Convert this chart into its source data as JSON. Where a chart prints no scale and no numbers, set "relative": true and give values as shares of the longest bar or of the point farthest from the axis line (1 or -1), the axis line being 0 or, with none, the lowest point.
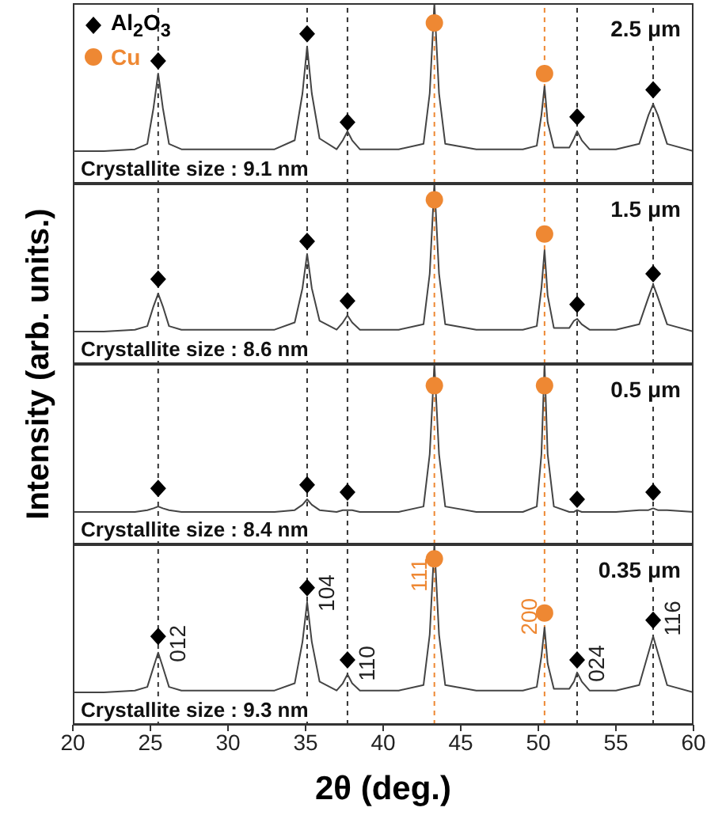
{
  "chart_data": [
    {
      "type": "line",
      "relative": true,
      "ylabel": "Intensity (arb. units.)",
      "xlim": [
        20,
        60
      ],
      "xticks": [
        20,
        25,
        30,
        35,
        40,
        45,
        50,
        55,
        60
      ],
      "tick_labels": false,
      "legend": "top left",
      "annotations": [
        "2.5 μm",
        "Crystallite size : 9.1 nm"
      ],
      "ref_lines": [
        {
          "axis": "x",
          "value": 25.5,
          "color": "#333333",
          "line_style": "dashed"
        },
        {
          "axis": "x",
          "value": 35.1,
          "color": "#333333",
          "line_style": "dashed"
        },
        {
          "axis": "x",
          "value": 37.7,
          "color": "#333333",
          "line_style": "dashed"
        },
        {
          "axis": "x",
          "value": 43.3,
          "color": "#ee8833",
          "line_style": "dashed"
        },
        {
          "axis": "x",
          "value": 50.4,
          "color": "#ee8833",
          "line_style": "dashed"
        },
        {
          "axis": "x",
          "value": 52.5,
          "color": "#333333",
          "line_style": "dashed"
        },
        {
          "axis": "x",
          "value": 57.4,
          "color": "#333333",
          "line_style": "dashed"
        }
      ],
      "series": [
        {
          "type": "line",
          "color": "#444444",
          "x": [
            20,
            22,
            24,
            24.8,
            25.2,
            25.5,
            25.8,
            26.2,
            27,
            30,
            33,
            34.3,
            34.8,
            35.1,
            35.4,
            35.9,
            37,
            37.4,
            37.7,
            38,
            38.5,
            41,
            42.6,
            43.0,
            43.3,
            43.6,
            44,
            46,
            49,
            49.9,
            50.2,
            50.4,
            50.6,
            51,
            52,
            52.3,
            52.5,
            52.8,
            53.3,
            55,
            56.5,
            57.1,
            57.4,
            57.7,
            58.3,
            60
          ],
          "values": [
            0.18,
            0.18,
            0.19,
            0.22,
            0.42,
            0.61,
            0.42,
            0.22,
            0.19,
            0.19,
            0.19,
            0.24,
            0.5,
            0.76,
            0.5,
            0.25,
            0.19,
            0.24,
            0.29,
            0.24,
            0.19,
            0.19,
            0.22,
            0.5,
            1,
            0.5,
            0.22,
            0.19,
            0.19,
            0.21,
            0.38,
            0.54,
            0.34,
            0.2,
            0.2,
            0.25,
            0.29,
            0.24,
            0.19,
            0.19,
            0.22,
            0.38,
            0.44,
            0.38,
            0.22,
            0.18
          ]
        },
        {
          "type": "scatter",
          "name": "Al$_{2}$O$_{3}$",
          "marker": "diamond",
          "color": "#000000",
          "x": [
            25.5,
            35.1,
            37.7,
            52.5,
            57.4
          ],
          "values": [
            0.68,
            0.83,
            0.34,
            0.37,
            0.52
          ]
        },
        {
          "type": "scatter",
          "name": "Cu",
          "marker": "circle",
          "color": "#ee8833",
          "x": [
            43.3,
            50.4
          ],
          "values": [
            0.89,
            0.61
          ]
        }
      ]
    },
    {
      "type": "line",
      "relative": true,
      "xlim": [
        20,
        60
      ],
      "xticks": [
        20,
        25,
        30,
        35,
        40,
        45,
        50,
        55,
        60
      ],
      "tick_labels": false,
      "annotations": [
        "1.5 μm",
        "Crystallite size : 8.6 nm"
      ],
      "ref_lines": [
        {
          "axis": "x",
          "value": 25.5,
          "color": "#333333",
          "line_style": "dashed"
        },
        {
          "axis": "x",
          "value": 35.1,
          "color": "#333333",
          "line_style": "dashed"
        },
        {
          "axis": "x",
          "value": 37.7,
          "color": "#333333",
          "line_style": "dashed"
        },
        {
          "axis": "x",
          "value": 43.3,
          "color": "#ee8833",
          "line_style": "dashed"
        },
        {
          "axis": "x",
          "value": 50.4,
          "color": "#ee8833",
          "line_style": "dashed"
        },
        {
          "axis": "x",
          "value": 52.5,
          "color": "#333333",
          "line_style": "dashed"
        },
        {
          "axis": "x",
          "value": 57.4,
          "color": "#333333",
          "line_style": "dashed"
        }
      ],
      "series": [
        {
          "type": "line",
          "color": "#444444",
          "x": [
            20,
            22,
            24,
            24.8,
            25.2,
            25.5,
            25.8,
            26.2,
            27,
            30,
            33,
            34.3,
            34.8,
            35.1,
            35.4,
            35.9,
            37,
            37.4,
            37.7,
            38,
            38.5,
            41,
            42.6,
            43.0,
            43.3,
            43.6,
            44,
            46,
            49,
            49.9,
            50.2,
            50.4,
            50.6,
            51,
            52,
            52.3,
            52.5,
            52.8,
            53.3,
            55,
            56.5,
            57.1,
            57.4,
            57.7,
            58.3,
            60
          ],
          "values": [
            0.18,
            0.18,
            0.19,
            0.21,
            0.32,
            0.39,
            0.32,
            0.21,
            0.19,
            0.19,
            0.19,
            0.23,
            0.42,
            0.61,
            0.42,
            0.24,
            0.19,
            0.23,
            0.27,
            0.23,
            0.19,
            0.19,
            0.22,
            0.5,
            1,
            0.5,
            0.22,
            0.19,
            0.19,
            0.21,
            0.42,
            0.63,
            0.38,
            0.2,
            0.2,
            0.24,
            0.25,
            0.22,
            0.19,
            0.19,
            0.22,
            0.37,
            0.44,
            0.37,
            0.22,
            0.18
          ]
        },
        {
          "type": "scatter",
          "marker": "diamond",
          "color": "#000000",
          "x": [
            25.5,
            35.1,
            37.7,
            52.5,
            57.4
          ],
          "values": [
            0.47,
            0.68,
            0.35,
            0.33,
            0.5
          ]
        },
        {
          "type": "scatter",
          "marker": "circle",
          "color": "#ee8833",
          "x": [
            43.3,
            50.4
          ],
          "values": [
            0.91,
            0.72
          ]
        }
      ]
    },
    {
      "type": "line",
      "relative": true,
      "xlim": [
        20,
        60
      ],
      "xticks": [
        20,
        25,
        30,
        35,
        40,
        45,
        50,
        55,
        60
      ],
      "tick_labels": false,
      "annotations": [
        "0.5 μm",
        "Crystallite size : 8.4 nm"
      ],
      "ref_lines": [
        {
          "axis": "x",
          "value": 25.5,
          "color": "#333333",
          "line_style": "dashed"
        },
        {
          "axis": "x",
          "value": 35.1,
          "color": "#333333",
          "line_style": "dashed"
        },
        {
          "axis": "x",
          "value": 37.7,
          "color": "#333333",
          "line_style": "dashed"
        },
        {
          "axis": "x",
          "value": 43.3,
          "color": "#ee8833",
          "line_style": "dashed"
        },
        {
          "axis": "x",
          "value": 50.4,
          "color": "#ee8833",
          "line_style": "dashed"
        },
        {
          "axis": "x",
          "value": 52.5,
          "color": "#333333",
          "line_style": "dashed"
        },
        {
          "axis": "x",
          "value": 57.4,
          "color": "#333333",
          "line_style": "dashed"
        }
      ],
      "series": [
        {
          "type": "line",
          "color": "#444444",
          "x": [
            20,
            22,
            24,
            24.8,
            25.2,
            25.5,
            25.8,
            26.2,
            27,
            30,
            33,
            34.3,
            34.8,
            35.1,
            35.4,
            35.9,
            37,
            37.4,
            37.7,
            38,
            38.5,
            41,
            42.6,
            43.0,
            43.3,
            43.6,
            44,
            46,
            49,
            49.9,
            50.2,
            50.4,
            50.6,
            51,
            52,
            52.3,
            52.5,
            52.8,
            53.3,
            55,
            56.5,
            57.1,
            57.4,
            57.7,
            58.3,
            60
          ],
          "values": [
            0.18,
            0.18,
            0.18,
            0.19,
            0.2,
            0.21,
            0.2,
            0.19,
            0.18,
            0.18,
            0.18,
            0.19,
            0.22,
            0.25,
            0.22,
            0.19,
            0.18,
            0.19,
            0.19,
            0.19,
            0.18,
            0.18,
            0.21,
            0.5,
            1,
            0.5,
            0.21,
            0.18,
            0.18,
            0.21,
            0.5,
            1,
            0.5,
            0.21,
            0.18,
            0.18,
            0.19,
            0.18,
            0.18,
            0.18,
            0.19,
            0.19,
            0.2,
            0.19,
            0.19,
            0.18
          ]
        },
        {
          "type": "scatter",
          "marker": "diamond",
          "color": "#000000",
          "x": [
            25.5,
            35.1,
            37.7,
            52.5,
            57.4
          ],
          "values": [
            0.31,
            0.33,
            0.29,
            0.25,
            0.29
          ]
        },
        {
          "type": "scatter",
          "marker": "circle",
          "color": "#ee8833",
          "x": [
            43.3,
            50.4
          ],
          "values": [
            0.88,
            0.88
          ]
        }
      ]
    },
    {
      "type": "line",
      "relative": true,
      "xlabel": "2θ (deg.)",
      "xlim": [
        20,
        60
      ],
      "xticks": [
        20,
        25,
        30,
        35,
        40,
        45,
        50,
        55,
        60
      ],
      "tick_labels": "x",
      "annotations": [
        "0.35 μm",
        "Crystallite size : 9.3 nm",
        {
          "text": "012",
          "x": 25.5,
          "y": 0.45
        },
        {
          "text": "104",
          "x": 35.1,
          "y": 0.73
        },
        {
          "text": "110",
          "x": 37.7,
          "y": 0.34
        },
        {
          "text": "111",
          "x": 43.3,
          "y": 0.83
        },
        {
          "text": "200",
          "x": 50.4,
          "y": 0.6
        },
        {
          "text": "024",
          "x": 52.5,
          "y": 0.34
        },
        {
          "text": "116",
          "x": 57.4,
          "y": 0.59
        }
      ],
      "ref_lines": [
        {
          "axis": "x",
          "value": 25.5,
          "color": "#333333",
          "line_style": "dashed"
        },
        {
          "axis": "x",
          "value": 35.1,
          "color": "#333333",
          "line_style": "dashed"
        },
        {
          "axis": "x",
          "value": 37.7,
          "color": "#333333",
          "line_style": "dashed"
        },
        {
          "axis": "x",
          "value": 43.3,
          "color": "#ee8833",
          "line_style": "dashed"
        },
        {
          "axis": "x",
          "value": 50.4,
          "color": "#ee8833",
          "line_style": "dashed"
        },
        {
          "axis": "x",
          "value": 52.5,
          "color": "#333333",
          "line_style": "dashed"
        },
        {
          "axis": "x",
          "value": 57.4,
          "color": "#333333",
          "line_style": "dashed"
        }
      ],
      "series": [
        {
          "type": "line",
          "color": "#444444",
          "x": [
            20,
            22,
            24,
            24.8,
            25.2,
            25.5,
            25.8,
            26.2,
            27,
            30,
            33,
            34.3,
            34.8,
            35.1,
            35.4,
            35.9,
            37,
            37.4,
            37.7,
            38,
            38.5,
            41,
            42.6,
            43.0,
            43.3,
            43.6,
            44,
            46,
            49,
            49.9,
            50.2,
            50.4,
            50.6,
            51,
            52,
            52.3,
            52.5,
            52.8,
            53.3,
            55,
            56.5,
            57.1,
            57.4,
            57.7,
            58.3,
            60
          ],
          "values": [
            0.18,
            0.18,
            0.19,
            0.21,
            0.32,
            0.4,
            0.32,
            0.21,
            0.19,
            0.19,
            0.19,
            0.23,
            0.46,
            0.68,
            0.46,
            0.24,
            0.19,
            0.23,
            0.28,
            0.23,
            0.19,
            0.19,
            0.22,
            0.5,
            1,
            0.5,
            0.22,
            0.19,
            0.19,
            0.21,
            0.38,
            0.54,
            0.34,
            0.2,
            0.2,
            0.24,
            0.29,
            0.24,
            0.19,
            0.19,
            0.22,
            0.4,
            0.49,
            0.4,
            0.22,
            0.18
          ]
        },
        {
          "type": "scatter",
          "marker": "diamond",
          "color": "#000000",
          "x": [
            25.5,
            35.1,
            37.7,
            52.5,
            57.4
          ],
          "values": [
            0.49,
            0.76,
            0.36,
            0.36,
            0.58
          ]
        },
        {
          "type": "scatter",
          "marker": "circle",
          "color": "#ee8833",
          "x": [
            43.3,
            50.4
          ],
          "values": [
            0.92,
            0.62
          ]
        }
      ]
    }
  ]
}
